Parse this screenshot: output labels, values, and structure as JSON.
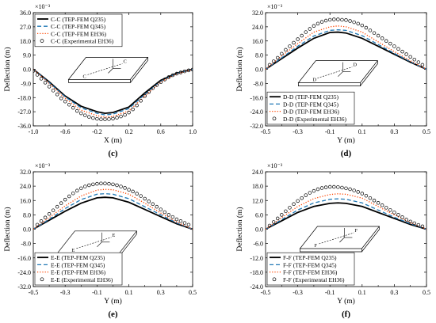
{
  "colors": {
    "q235": "#000000",
    "q345": "#1f77b4",
    "eh36": "#ff4500",
    "experimental": "#000000"
  },
  "chart_data": [
    {
      "type": "line",
      "panel_label": "(c)",
      "xlabel": "X (m)",
      "ylabel": "Deflection (m)",
      "scale_label": "×10⁻³",
      "xlim": [
        -1.0,
        1.0
      ],
      "ylim": [
        -36.0,
        36.0
      ],
      "xticks": [
        "-1.0",
        "-0.6",
        "-0.2",
        "0.2",
        "0.6",
        "1.0"
      ],
      "xticks_minor": [
        "-0.8",
        "-0.4",
        "0.0",
        "0.4",
        "0.8"
      ],
      "yticks": [
        "36.0",
        "27.0",
        "18.0",
        "9.0",
        "0.0",
        "-9.0",
        "-18.0",
        "-27.0",
        "-36.0"
      ],
      "legend_position": "top-left",
      "inset_position": "center",
      "inset_labels": [
        "C",
        "C"
      ],
      "series": [
        {
          "name": "C-C (TEP-FEM Q235)",
          "style": "solid",
          "x": [
            -1.0,
            -0.8,
            -0.6,
            -0.4,
            -0.2,
            -0.1,
            0.0,
            0.2,
            0.4,
            0.6,
            0.8,
            1.0
          ],
          "y": [
            0.0,
            -8.0,
            -17.0,
            -23.5,
            -27.0,
            -28.0,
            -27.5,
            -24.0,
            -15.0,
            -7.0,
            -2.5,
            0.0
          ]
        },
        {
          "name": "C-C (TEP-FEM Q345)",
          "style": "dashed",
          "x": [
            -1.0,
            -0.8,
            -0.6,
            -0.4,
            -0.2,
            -0.1,
            0.0,
            0.2,
            0.4,
            0.6,
            0.8,
            1.0
          ],
          "y": [
            0.0,
            -8.5,
            -17.5,
            -24.5,
            -28.0,
            -29.0,
            -28.5,
            -25.0,
            -16.0,
            -7.5,
            -2.7,
            0.0
          ]
        },
        {
          "name": "C-C (TEP-FEM EH36)",
          "style": "dotted",
          "x": [
            -1.0,
            -0.8,
            -0.6,
            -0.4,
            -0.2,
            -0.1,
            0.0,
            0.2,
            0.4,
            0.6,
            0.8,
            1.0
          ],
          "y": [
            0.0,
            -9.0,
            -18.5,
            -26.0,
            -29.5,
            -30.5,
            -30.0,
            -26.5,
            -17.0,
            -8.0,
            -3.0,
            0.0
          ]
        },
        {
          "name": "C-C (Experimental EH36)",
          "style": "marker",
          "x": [
            -1.0,
            -0.95,
            -0.9,
            -0.85,
            -0.8,
            -0.75,
            -0.7,
            -0.65,
            -0.6,
            -0.55,
            -0.5,
            -0.45,
            -0.4,
            -0.35,
            -0.3,
            -0.25,
            -0.2,
            -0.15,
            -0.1,
            -0.05,
            0.0,
            0.05,
            0.1,
            0.15,
            0.2,
            0.25,
            0.3,
            0.35,
            0.4,
            0.45,
            0.5,
            0.55,
            0.6,
            0.65,
            0.7,
            0.75,
            0.8,
            0.85,
            0.9,
            0.95,
            1.0
          ],
          "y": [
            -1.0,
            -3.5,
            -6.0,
            -8.5,
            -11.0,
            -13.5,
            -16.0,
            -18.5,
            -20.5,
            -22.5,
            -24.5,
            -26.5,
            -28.0,
            -29.3,
            -30.3,
            -31.0,
            -31.5,
            -31.8,
            -31.8,
            -31.7,
            -31.4,
            -30.8,
            -30.0,
            -29.0,
            -27.5,
            -25.5,
            -23.0,
            -20.0,
            -17.0,
            -14.5,
            -12.0,
            -10.0,
            -8.2,
            -6.5,
            -5.0,
            -3.8,
            -2.8,
            -2.0,
            -1.3,
            -0.7,
            -0.2
          ]
        }
      ]
    },
    {
      "type": "line",
      "panel_label": "(d)",
      "xlabel": "Y (m)",
      "ylabel": "Deflection (m)",
      "scale_label": "×10⁻³",
      "xlim": [
        -0.5,
        0.5
      ],
      "ylim": [
        -32.0,
        32.0
      ],
      "xticks": [
        "-0.5",
        "-0.3",
        "-0.1",
        "0.1",
        "0.3",
        "0.5"
      ],
      "xticks_minor": [
        "-0.4",
        "-0.2",
        "0.0",
        "0.2",
        "0.4"
      ],
      "yticks": [
        "32.0",
        "24.0",
        "16.0",
        "8.0",
        "0.0",
        "-8.0",
        "-16.0",
        "-24.0",
        "-32.0"
      ],
      "legend_position": "bottom-left",
      "inset_position": "center",
      "inset_labels": [
        "D",
        "D"
      ],
      "series": [
        {
          "name": "D-D (TEP-FEM Q235)",
          "style": "solid",
          "x": [
            -0.5,
            -0.4,
            -0.3,
            -0.2,
            -0.1,
            -0.05,
            0.0,
            0.1,
            0.2,
            0.3,
            0.4,
            0.5
          ],
          "y": [
            0.0,
            6.0,
            12.0,
            17.5,
            20.8,
            21.0,
            20.5,
            17.5,
            13.0,
            8.5,
            4.0,
            0.0
          ]
        },
        {
          "name": "D-D (TEP-FEM Q345)",
          "style": "dashed",
          "x": [
            -0.5,
            -0.4,
            -0.3,
            -0.2,
            -0.1,
            -0.05,
            0.0,
            0.1,
            0.2,
            0.3,
            0.4,
            0.5
          ],
          "y": [
            0.0,
            6.5,
            13.0,
            18.8,
            22.0,
            22.3,
            22.0,
            19.0,
            14.0,
            9.0,
            4.3,
            0.0
          ]
        },
        {
          "name": "D-D (TEP-FEM EH36)",
          "style": "dotted",
          "x": [
            -0.5,
            -0.4,
            -0.3,
            -0.2,
            -0.1,
            -0.05,
            0.0,
            0.1,
            0.2,
            0.3,
            0.4,
            0.5
          ],
          "y": [
            0.0,
            7.5,
            14.5,
            21.0,
            24.0,
            24.5,
            24.0,
            21.0,
            15.5,
            10.0,
            4.8,
            0.0
          ]
        },
        {
          "name": "D-D (Experimental EH36)",
          "style": "marker",
          "x": [
            -0.475,
            -0.45,
            -0.425,
            -0.4,
            -0.375,
            -0.35,
            -0.325,
            -0.3,
            -0.275,
            -0.25,
            -0.225,
            -0.2,
            -0.175,
            -0.15,
            -0.125,
            -0.1,
            -0.075,
            -0.05,
            -0.025,
            0.0,
            0.025,
            0.05,
            0.075,
            0.1,
            0.125,
            0.15,
            0.175,
            0.2,
            0.225,
            0.25,
            0.275,
            0.3,
            0.325,
            0.35,
            0.375,
            0.4,
            0.425,
            0.45,
            0.475
          ],
          "y": [
            2.5,
            4.5,
            6.5,
            8.8,
            11.0,
            13.0,
            15.0,
            17.0,
            19.0,
            21.0,
            22.8,
            24.5,
            25.8,
            26.8,
            27.5,
            28.0,
            28.2,
            28.2,
            28.0,
            27.8,
            27.3,
            26.6,
            25.8,
            24.8,
            23.5,
            22.0,
            20.5,
            19.0,
            17.5,
            16.0,
            14.5,
            13.0,
            11.5,
            10.0,
            8.5,
            7.0,
            5.5,
            4.0,
            2.5
          ]
        }
      ]
    },
    {
      "type": "line",
      "panel_label": "(e)",
      "xlabel": "Y (m)",
      "ylabel": "Deflection (m)",
      "scale_label": "×10⁻³",
      "xlim": [
        -0.5,
        0.5
      ],
      "ylim": [
        -32.0,
        32.0
      ],
      "xticks": [
        "-0.5",
        "-0.3",
        "-0.1",
        "0.1",
        "0.3",
        "0.5"
      ],
      "xticks_minor": [
        "-0.4",
        "-0.2",
        "0.0",
        "0.2",
        "0.4"
      ],
      "yticks": [
        "32.0",
        "24.0",
        "16.0",
        "8.0",
        "0.0",
        "-8.0",
        "-16.0",
        "-24.0",
        "-32.0"
      ],
      "legend_position": "bottom-left",
      "inset_position": "center-left",
      "inset_labels": [
        "E",
        "E"
      ],
      "series": [
        {
          "name": "E-E (TEP-FEM Q235)",
          "style": "solid",
          "x": [
            -0.5,
            -0.4,
            -0.3,
            -0.2,
            -0.1,
            -0.05,
            0.0,
            0.1,
            0.2,
            0.3,
            0.4,
            0.5
          ],
          "y": [
            0.0,
            5.0,
            10.0,
            14.5,
            17.5,
            17.8,
            17.5,
            15.0,
            11.0,
            7.0,
            3.0,
            0.0
          ]
        },
        {
          "name": "E-E (TEP-FEM Q345)",
          "style": "dashed",
          "x": [
            -0.5,
            -0.4,
            -0.3,
            -0.2,
            -0.1,
            -0.05,
            0.0,
            0.1,
            0.2,
            0.3,
            0.4,
            0.5
          ],
          "y": [
            0.0,
            5.5,
            11.5,
            16.5,
            19.5,
            19.8,
            19.5,
            17.0,
            12.5,
            8.0,
            3.5,
            0.0
          ]
        },
        {
          "name": "E-E (TEP-FEM EH36)",
          "style": "dotted",
          "x": [
            -0.5,
            -0.4,
            -0.3,
            -0.2,
            -0.1,
            -0.05,
            0.0,
            0.1,
            0.2,
            0.3,
            0.4,
            0.5
          ],
          "y": [
            0.0,
            6.5,
            13.0,
            18.5,
            21.8,
            22.2,
            22.0,
            19.5,
            14.5,
            9.0,
            4.0,
            0.0
          ]
        },
        {
          "name": "E-E (Experimental EH36)",
          "style": "marker",
          "x": [
            -0.475,
            -0.45,
            -0.425,
            -0.4,
            -0.375,
            -0.35,
            -0.325,
            -0.3,
            -0.275,
            -0.25,
            -0.225,
            -0.2,
            -0.175,
            -0.15,
            -0.125,
            -0.1,
            -0.075,
            -0.05,
            -0.025,
            0.0,
            0.025,
            0.05,
            0.075,
            0.1,
            0.125,
            0.15,
            0.175,
            0.2,
            0.225,
            0.25,
            0.275,
            0.3,
            0.325,
            0.35,
            0.375,
            0.4,
            0.425,
            0.45,
            0.475
          ],
          "y": [
            2.5,
            4.5,
            6.5,
            8.5,
            10.5,
            12.5,
            14.5,
            16.5,
            18.3,
            20.0,
            21.5,
            22.8,
            23.8,
            24.5,
            25.0,
            25.3,
            25.5,
            25.5,
            25.3,
            25.0,
            24.5,
            23.8,
            23.0,
            22.0,
            21.0,
            19.8,
            18.5,
            17.0,
            15.5,
            14.0,
            12.5,
            11.0,
            9.5,
            8.0,
            6.8,
            5.5,
            4.5,
            3.5,
            2.5
          ]
        }
      ]
    },
    {
      "type": "line",
      "panel_label": "(f)",
      "xlabel": "Y (m)",
      "ylabel": "Deflection (m)",
      "scale_label": "×10⁻³",
      "xlim": [
        -0.5,
        0.5
      ],
      "ylim": [
        -24.0,
        24.0
      ],
      "xticks": [
        "-0.5",
        "-0.3",
        "-0.1",
        "0.1",
        "0.3",
        "0.5"
      ],
      "xticks_minor": [
        "-0.4",
        "-0.2",
        "0.0",
        "0.2",
        "0.4"
      ],
      "yticks": [
        "24.0",
        "18.0",
        "12.0",
        "6.0",
        "0.0",
        "-6.0",
        "-12.0",
        "-18.0",
        "-24.0"
      ],
      "legend_position": "bottom-left",
      "inset_position": "center",
      "inset_labels": [
        "F",
        "F"
      ],
      "series": [
        {
          "name": "F-F (TEP-FEM Q235)",
          "style": "solid",
          "x": [
            -0.5,
            -0.4,
            -0.3,
            -0.2,
            -0.1,
            -0.05,
            0.0,
            0.1,
            0.2,
            0.3,
            0.4,
            0.5
          ],
          "y": [
            0.0,
            3.5,
            7.0,
            9.5,
            10.8,
            11.0,
            10.8,
            9.5,
            7.0,
            4.5,
            2.0,
            0.0
          ]
        },
        {
          "name": "F-F (TEP-FEM Q345)",
          "style": "dashed",
          "x": [
            -0.5,
            -0.4,
            -0.3,
            -0.2,
            -0.1,
            -0.05,
            0.0,
            0.1,
            0.2,
            0.3,
            0.4,
            0.5
          ],
          "y": [
            0.0,
            4.0,
            8.0,
            11.0,
            12.5,
            12.7,
            12.5,
            11.0,
            8.0,
            5.0,
            2.3,
            0.0
          ]
        },
        {
          "name": "F-F (TEP-FEM EH36)",
          "style": "dotted",
          "x": [
            -0.5,
            -0.4,
            -0.3,
            -0.2,
            -0.1,
            -0.05,
            0.0,
            0.1,
            0.2,
            0.3,
            0.4,
            0.5
          ],
          "y": [
            0.0,
            4.8,
            9.5,
            12.8,
            14.5,
            14.8,
            14.6,
            13.0,
            9.5,
            6.0,
            2.8,
            0.0
          ]
        },
        {
          "name": "F-F (Experimental EH36)",
          "style": "marker",
          "x": [
            -0.475,
            -0.45,
            -0.425,
            -0.4,
            -0.375,
            -0.35,
            -0.325,
            -0.3,
            -0.275,
            -0.25,
            -0.225,
            -0.2,
            -0.175,
            -0.15,
            -0.125,
            -0.1,
            -0.075,
            -0.05,
            -0.025,
            0.0,
            0.025,
            0.05,
            0.075,
            0.1,
            0.125,
            0.15,
            0.175,
            0.2,
            0.225,
            0.25,
            0.275,
            0.3,
            0.325,
            0.35,
            0.375,
            0.4,
            0.425,
            0.45,
            0.475
          ],
          "y": [
            1.5,
            3.0,
            4.5,
            6.0,
            7.5,
            9.0,
            10.5,
            11.8,
            13.0,
            14.2,
            15.2,
            16.0,
            16.7,
            17.2,
            17.5,
            17.7,
            17.7,
            17.6,
            17.4,
            17.1,
            16.7,
            16.2,
            15.6,
            14.9,
            14.0,
            13.0,
            12.0,
            11.0,
            10.0,
            9.0,
            8.0,
            7.0,
            6.0,
            5.0,
            4.0,
            3.2,
            2.5,
            1.8,
            1.2
          ]
        }
      ]
    }
  ]
}
